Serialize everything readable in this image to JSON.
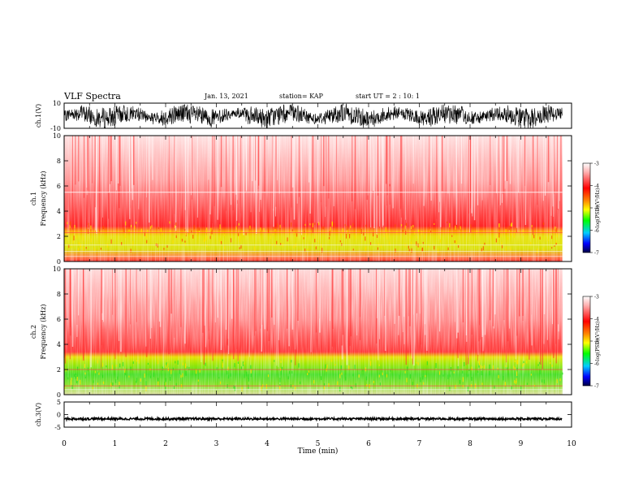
{
  "header": {
    "title": "VLF Spectra",
    "date": "Jan. 13, 2021",
    "station": "station= KAP",
    "start": "start  UT =   2 : 10: 1"
  },
  "chart_data": [
    {
      "type": "line",
      "name": "waveform-ch1",
      "ylabel": "ch.1(V)",
      "ylim": [
        -10,
        10
      ],
      "yticks": [
        "10",
        "-10"
      ],
      "xlim": [
        0,
        10
      ]
    },
    {
      "type": "heatmap",
      "name": "spectrogram-ch1",
      "ylabel": "Frequency  (kHz)",
      "ylabel_prefix": "ch.1",
      "ylim": [
        0,
        10
      ],
      "yticks": [
        "0",
        "2",
        "4",
        "6",
        "8",
        "10"
      ],
      "xlim": [
        0,
        10
      ],
      "colorbar": {
        "label": "log(PSD)(V²/Hz)",
        "range": [
          -7,
          -3
        ],
        "ticks": [
          "-3",
          "-4",
          "-5",
          "-6",
          "-7"
        ]
      }
    },
    {
      "type": "heatmap",
      "name": "spectrogram-ch2",
      "ylabel": "Frequency  (kHz)",
      "ylabel_prefix": "ch.2",
      "ylim": [
        0,
        10
      ],
      "yticks": [
        "0",
        "2",
        "4",
        "6",
        "8",
        "10"
      ],
      "xlim": [
        0,
        10
      ],
      "colorbar": {
        "label": "log(PSD)(V²/Hz)",
        "range": [
          -7,
          -3
        ],
        "ticks": [
          "-3",
          "-4",
          "-5",
          "-6",
          "-7"
        ]
      }
    },
    {
      "type": "line",
      "name": "waveform-ch3",
      "ylabel": "ch.3(V)",
      "ylim": [
        -5,
        5
      ],
      "yticks": [
        "5",
        "0",
        "-5"
      ],
      "xlim": [
        0,
        10
      ]
    }
  ],
  "xaxis": {
    "label": "Time  (min)",
    "ticks": [
      "0",
      "1",
      "2",
      "3",
      "4",
      "5",
      "6",
      "7",
      "8",
      "9",
      "10"
    ]
  },
  "colors": {
    "trace": "#000000",
    "spectro_high": "#ff2a2a",
    "spectro_band": "#e8e000",
    "spectro_low": "#33dd22"
  }
}
